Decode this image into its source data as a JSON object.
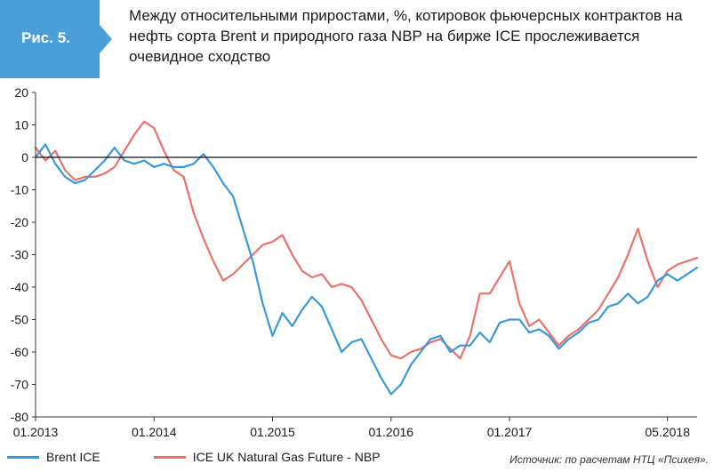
{
  "figure": {
    "label": "Рис. 5.",
    "title": "Между относительными приростами, %, котировок фьючерсных контрактов на нефть сорта Brent и природного газа NBP на бирже ICE прослеживается очевидное сходство",
    "source": "Источник: по расчетам НТЦ «Психея».",
    "badge_color": "#4b9fd8"
  },
  "chart_data": {
    "type": "line",
    "title": "",
    "xlabel": "",
    "ylabel": "",
    "ylim": [
      -80,
      20
    ],
    "yticks": [
      20,
      10,
      0,
      -10,
      -20,
      -30,
      -40,
      -50,
      -60,
      -70,
      -80
    ],
    "xlim": [
      "2013-01",
      "2018-08"
    ],
    "xticks": [
      {
        "date": "2013-01",
        "label": "01.2013"
      },
      {
        "date": "2014-01",
        "label": "01.2014"
      },
      {
        "date": "2015-01",
        "label": "01.2015"
      },
      {
        "date": "2016-01",
        "label": "01.2016"
      },
      {
        "date": "2017-01",
        "label": "01.2017"
      },
      {
        "date": "2018-05",
        "label": "05.2018"
      }
    ],
    "grid": false,
    "legend": "bottom",
    "zero_line": true,
    "series": [
      {
        "name": "Brent ICE",
        "color": "#3a9ad9",
        "points": [
          [
            "2013-01",
            0
          ],
          [
            "2013-02",
            4
          ],
          [
            "2013-03",
            -2
          ],
          [
            "2013-04",
            -6
          ],
          [
            "2013-05",
            -8
          ],
          [
            "2013-06",
            -7
          ],
          [
            "2013-07",
            -4
          ],
          [
            "2013-08",
            -1
          ],
          [
            "2013-09",
            3
          ],
          [
            "2013-10",
            -1
          ],
          [
            "2013-11",
            -2
          ],
          [
            "2013-12",
            -1
          ],
          [
            "2014-01",
            -3
          ],
          [
            "2014-02",
            -2
          ],
          [
            "2014-03",
            -3
          ],
          [
            "2014-04",
            -3
          ],
          [
            "2014-05",
            -2
          ],
          [
            "2014-06",
            1
          ],
          [
            "2014-07",
            -3
          ],
          [
            "2014-08",
            -8
          ],
          [
            "2014-09",
            -12
          ],
          [
            "2014-10",
            -22
          ],
          [
            "2014-11",
            -32
          ],
          [
            "2014-12",
            -45
          ],
          [
            "2015-01",
            -55
          ],
          [
            "2015-02",
            -48
          ],
          [
            "2015-03",
            -52
          ],
          [
            "2015-04",
            -47
          ],
          [
            "2015-05",
            -43
          ],
          [
            "2015-06",
            -46
          ],
          [
            "2015-07",
            -53
          ],
          [
            "2015-08",
            -60
          ],
          [
            "2015-09",
            -57
          ],
          [
            "2015-10",
            -56
          ],
          [
            "2015-11",
            -62
          ],
          [
            "2015-12",
            -68
          ],
          [
            "2016-01",
            -73
          ],
          [
            "2016-02",
            -70
          ],
          [
            "2016-03",
            -64
          ],
          [
            "2016-04",
            -60
          ],
          [
            "2016-05",
            -56
          ],
          [
            "2016-06",
            -55
          ],
          [
            "2016-07",
            -60
          ],
          [
            "2016-08",
            -58
          ],
          [
            "2016-09",
            -58
          ],
          [
            "2016-10",
            -54
          ],
          [
            "2016-11",
            -57
          ],
          [
            "2016-12",
            -51
          ],
          [
            "2017-01",
            -50
          ],
          [
            "2017-02",
            -50
          ],
          [
            "2017-03",
            -54
          ],
          [
            "2017-04",
            -53
          ],
          [
            "2017-05",
            -55
          ],
          [
            "2017-06",
            -59
          ],
          [
            "2017-07",
            -56
          ],
          [
            "2017-08",
            -54
          ],
          [
            "2017-09",
            -51
          ],
          [
            "2017-10",
            -50
          ],
          [
            "2017-11",
            -46
          ],
          [
            "2017-12",
            -45
          ],
          [
            "2018-01",
            -42
          ],
          [
            "2018-02",
            -45
          ],
          [
            "2018-03",
            -43
          ],
          [
            "2018-04",
            -38
          ],
          [
            "2018-05",
            -36
          ],
          [
            "2018-06",
            -38
          ],
          [
            "2018-07",
            -36
          ],
          [
            "2018-08",
            -34
          ]
        ]
      },
      {
        "name": "ICE UK Natural Gas Future - NBP",
        "color": "#e8736c",
        "points": [
          [
            "2013-01",
            3
          ],
          [
            "2013-02",
            -1
          ],
          [
            "2013-03",
            2
          ],
          [
            "2013-04",
            -4
          ],
          [
            "2013-05",
            -7
          ],
          [
            "2013-06",
            -6
          ],
          [
            "2013-07",
            -6
          ],
          [
            "2013-08",
            -5
          ],
          [
            "2013-09",
            -3
          ],
          [
            "2013-10",
            2
          ],
          [
            "2013-11",
            7
          ],
          [
            "2013-12",
            11
          ],
          [
            "2014-01",
            9
          ],
          [
            "2014-02",
            2
          ],
          [
            "2014-03",
            -4
          ],
          [
            "2014-04",
            -6
          ],
          [
            "2014-05",
            -17
          ],
          [
            "2014-06",
            -25
          ],
          [
            "2014-07",
            -32
          ],
          [
            "2014-08",
            -38
          ],
          [
            "2014-09",
            -36
          ],
          [
            "2014-10",
            -33
          ],
          [
            "2014-11",
            -30
          ],
          [
            "2014-12",
            -27
          ],
          [
            "2015-01",
            -26
          ],
          [
            "2015-02",
            -24
          ],
          [
            "2015-03",
            -30
          ],
          [
            "2015-04",
            -35
          ],
          [
            "2015-05",
            -37
          ],
          [
            "2015-06",
            -36
          ],
          [
            "2015-07",
            -40
          ],
          [
            "2015-08",
            -39
          ],
          [
            "2015-09",
            -40
          ],
          [
            "2015-10",
            -44
          ],
          [
            "2015-11",
            -50
          ],
          [
            "2015-12",
            -56
          ],
          [
            "2016-01",
            -61
          ],
          [
            "2016-02",
            -62
          ],
          [
            "2016-03",
            -60
          ],
          [
            "2016-04",
            -59
          ],
          [
            "2016-05",
            -57
          ],
          [
            "2016-06",
            -56
          ],
          [
            "2016-07",
            -59
          ],
          [
            "2016-08",
            -62
          ],
          [
            "2016-09",
            -55
          ],
          [
            "2016-10",
            -42
          ],
          [
            "2016-11",
            -42
          ],
          [
            "2016-12",
            -37
          ],
          [
            "2017-01",
            -32
          ],
          [
            "2017-02",
            -45
          ],
          [
            "2017-03",
            -52
          ],
          [
            "2017-04",
            -50
          ],
          [
            "2017-05",
            -54
          ],
          [
            "2017-06",
            -58
          ],
          [
            "2017-07",
            -55
          ],
          [
            "2017-08",
            -53
          ],
          [
            "2017-09",
            -50
          ],
          [
            "2017-10",
            -47
          ],
          [
            "2017-11",
            -42
          ],
          [
            "2017-12",
            -37
          ],
          [
            "2018-01",
            -30
          ],
          [
            "2018-02",
            -22
          ],
          [
            "2018-03",
            -32
          ],
          [
            "2018-04",
            -40
          ],
          [
            "2018-05",
            -35
          ],
          [
            "2018-06",
            -33
          ],
          [
            "2018-07",
            -32
          ],
          [
            "2018-08",
            -31
          ]
        ]
      }
    ]
  }
}
